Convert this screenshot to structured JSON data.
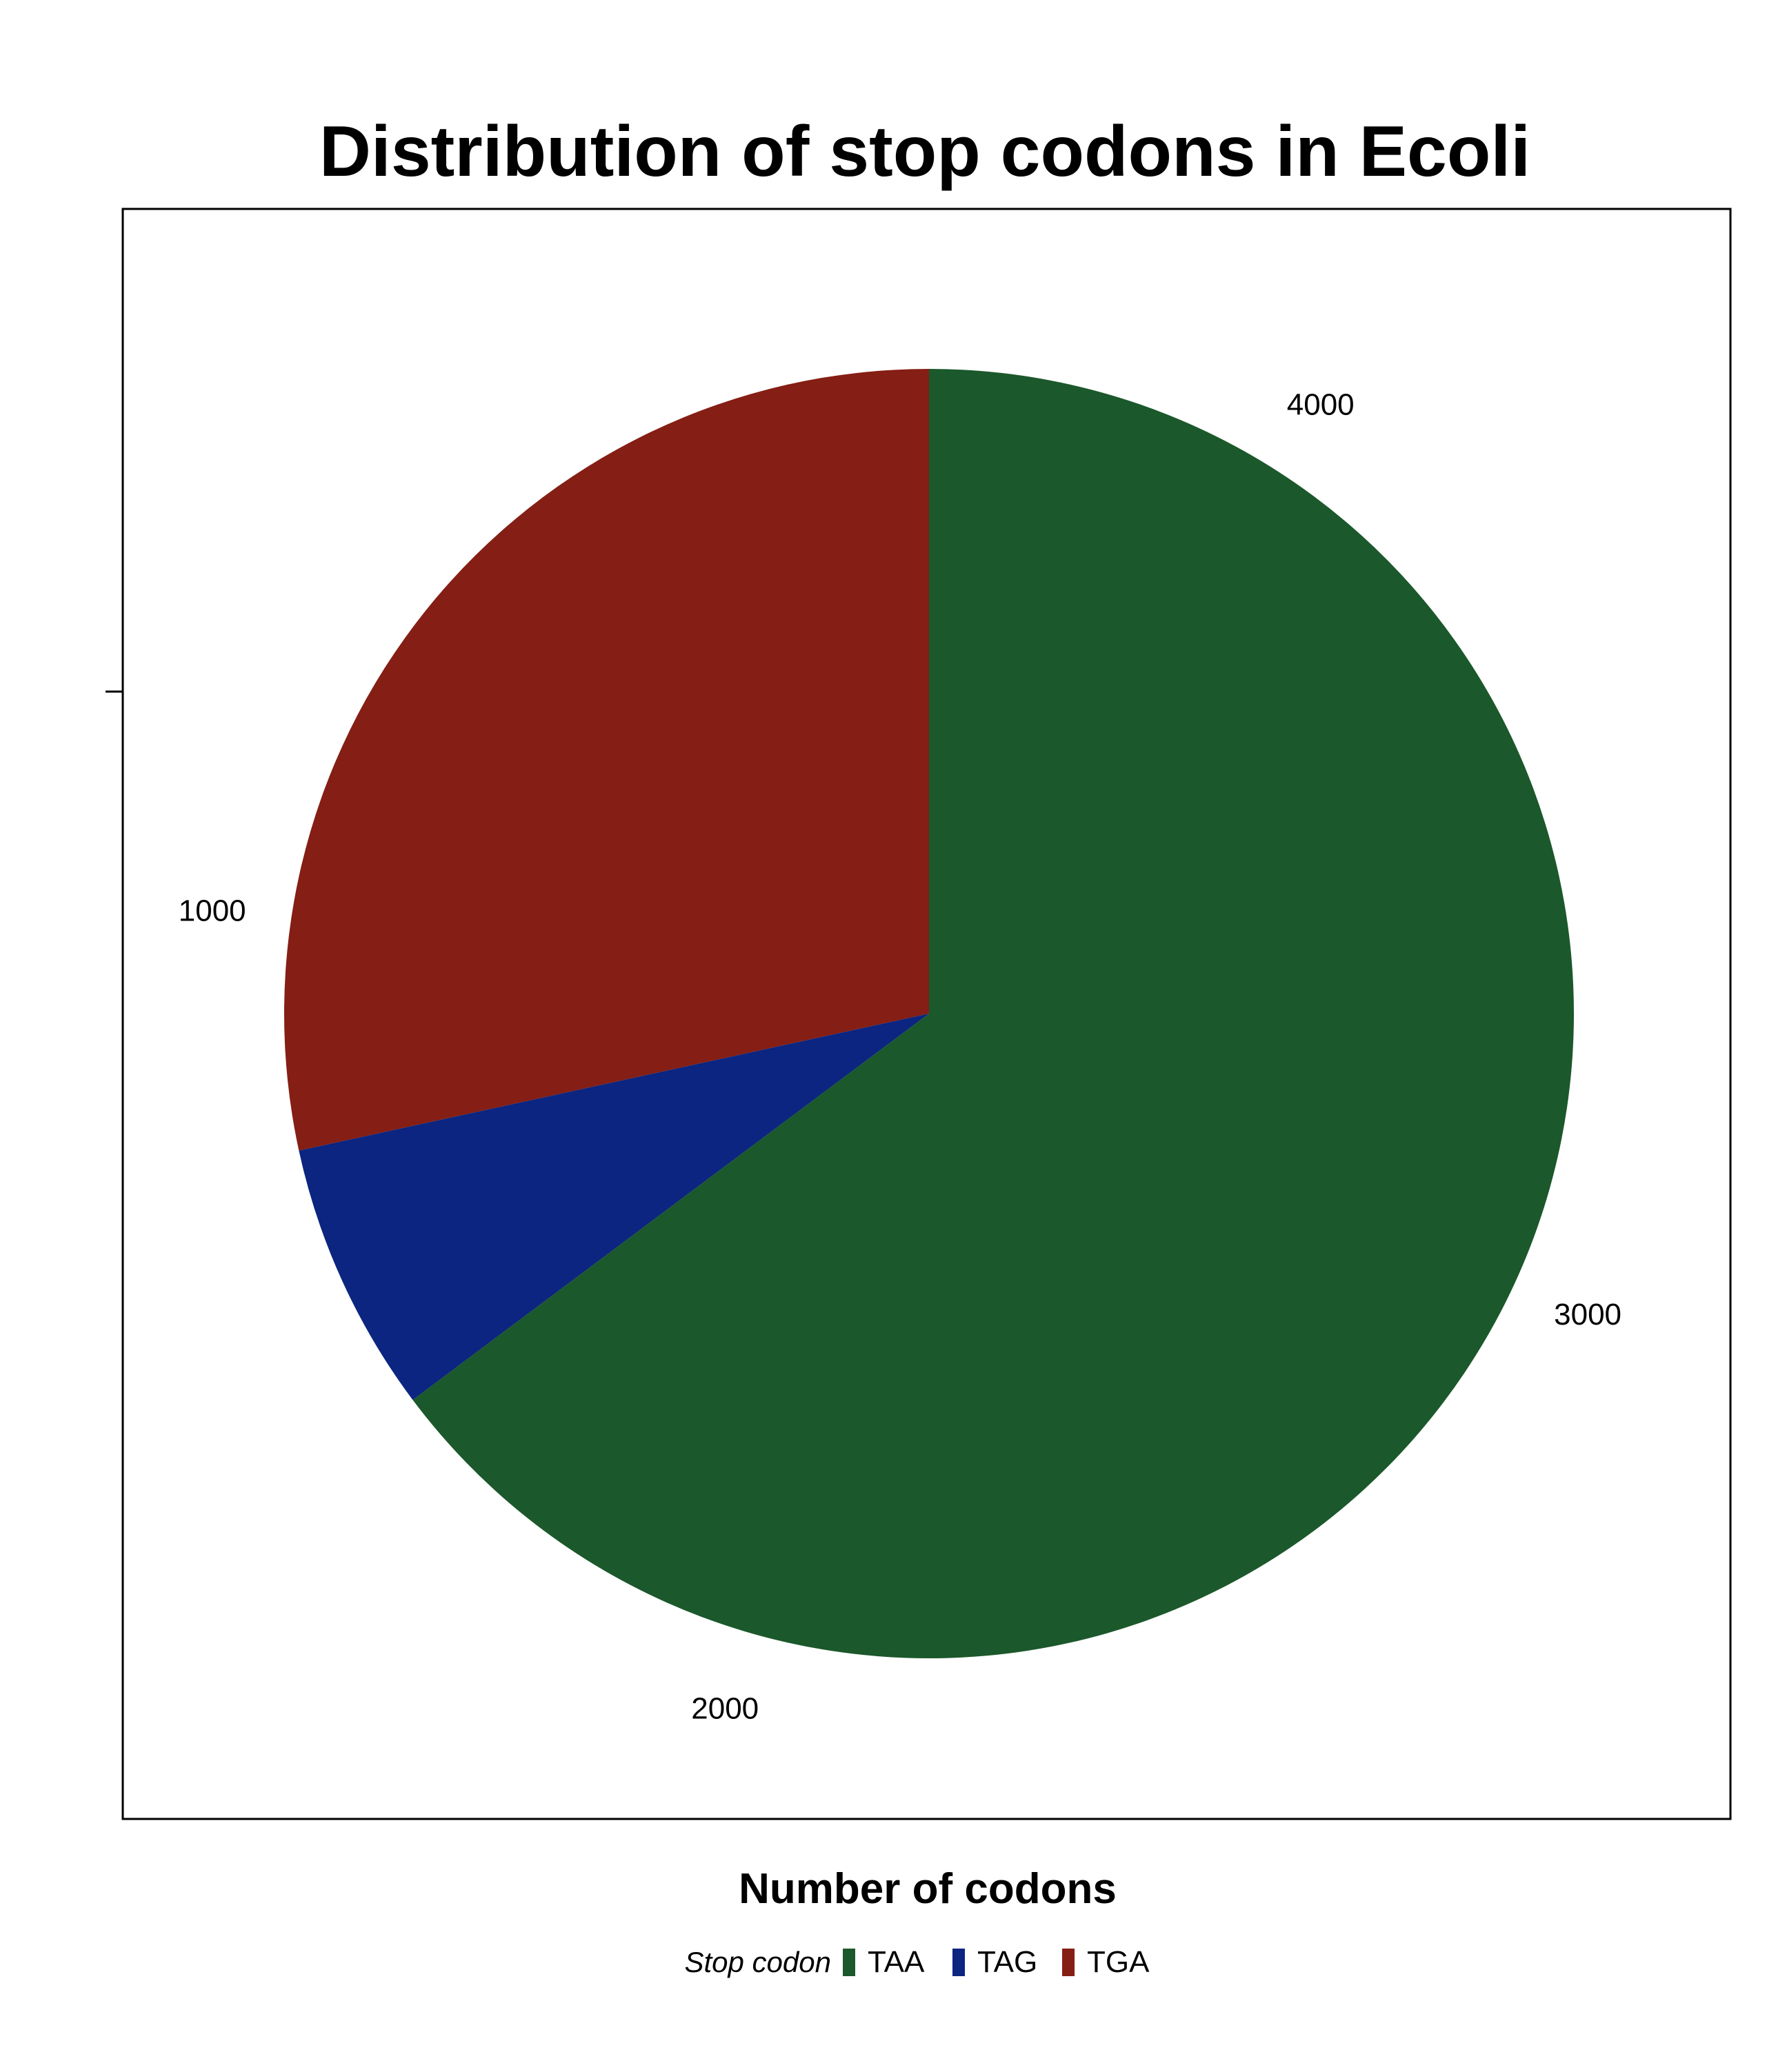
{
  "chart_data": {
    "type": "pie",
    "title": "Distribution of stop codons in Ecoli",
    "xlabel": "Number of codons",
    "ylabel": "",
    "legend": {
      "title": "Stop codon",
      "position": "bottom",
      "items": [
        "TAA",
        "TAG",
        "TGA"
      ]
    },
    "categories": [
      "TAA",
      "TAG",
      "TGA"
    ],
    "values": [
      2850,
      300,
      1250
    ],
    "colors": [
      "#1B582B",
      "#0B2580",
      "#851E14"
    ],
    "axis": {
      "range": [
        0,
        4400
      ],
      "ticks": [
        1000,
        2000,
        3000,
        4000
      ],
      "tick_labels": [
        "1000",
        "2000",
        "3000",
        "4000"
      ],
      "direction": "counterclockwise"
    },
    "grid": false
  }
}
